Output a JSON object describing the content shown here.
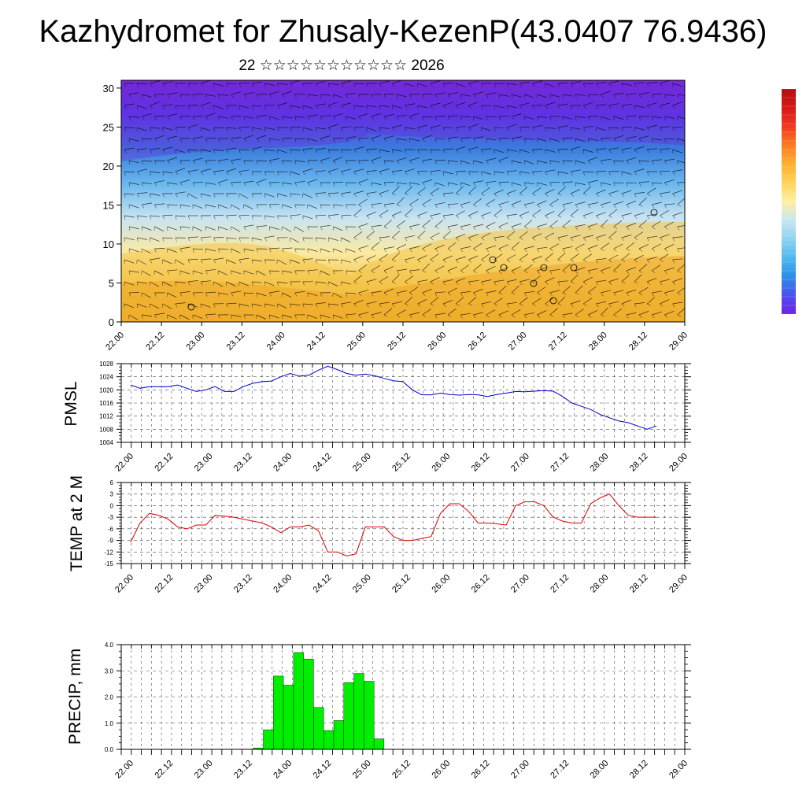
{
  "title": "Kazhydromet for Zhusaly-KezenP(43.0407 76.9436)",
  "subtitle": "22 ☆☆☆☆☆☆☆☆☆☆☆ 2026",
  "colors": {
    "pmsl_line": "#0000cc",
    "temp_line": "#dd0000",
    "precip_fill": "#00ee00",
    "precip_edge": "#000000",
    "gridline": "#000000",
    "section_colors": [
      "#7a2bd6",
      "#5a3ae8",
      "#3b7ddd",
      "#6ab8ee",
      "#c9e4f2",
      "#fbeaa0",
      "#f3c240",
      "#eda81c"
    ],
    "colorbar_colors": [
      "#7020e8",
      "#4a52f0",
      "#2f8ee6",
      "#4fb9f0",
      "#8fd2f0",
      "#c8e6f2",
      "#fff0a0",
      "#ffd25a",
      "#ffb030",
      "#ff7a20",
      "#f03a20",
      "#d81818",
      "#b01010"
    ]
  },
  "chart_data": [
    {
      "type": "heatmap",
      "name": "vertical-section",
      "x_tick_labels": [
        "22.00",
        "22.12",
        "23.00",
        "23.12",
        "24.00",
        "24.12",
        "25.00",
        "25.12",
        "26.00",
        "26.12",
        "27.00",
        "27.12",
        "28.00",
        "28.12",
        "29.00"
      ],
      "y_ticks": [
        0,
        5,
        10,
        15,
        20,
        25,
        30
      ],
      "ylim": [
        0,
        31
      ],
      "grid": false,
      "legend": "right colorbar"
    },
    {
      "type": "line",
      "name": "pmsl",
      "ylabel": "PMSL",
      "x_tick_labels": [
        "22.00",
        "22.12",
        "23.00",
        "23.12",
        "24.00",
        "24.12",
        "25.00",
        "25.12",
        "26.00",
        "26.12",
        "27.00",
        "27.12",
        "28.00",
        "28.12",
        "29.00"
      ],
      "y_ticks": [
        1004,
        1008,
        1012,
        1016,
        1020,
        1024,
        1028
      ],
      "ylim": [
        1004,
        1028
      ],
      "grid": true,
      "values": [
        1021.5,
        1020.5,
        1021,
        1021,
        1021,
        1021.5,
        1020.5,
        1019.5,
        1020,
        1021,
        1019.5,
        1019.5,
        1021,
        1022,
        1022.5,
        1022.7,
        1024,
        1025,
        1024.2,
        1024.5,
        1026,
        1027.2,
        1026.2,
        1025,
        1024.5,
        1024.8,
        1024.3,
        1023.5,
        1022.8,
        1022.5,
        1020,
        1018.5,
        1018.5,
        1019,
        1018.6,
        1018.4,
        1018.6,
        1018.5,
        1018,
        1018.6,
        1019,
        1019.5,
        1019.4,
        1019.6,
        1019.8,
        1019.6,
        1018,
        1016,
        1015,
        1014,
        1012.5,
        1011.5,
        1010.5,
        1010,
        1009,
        1008,
        1009
      ]
    },
    {
      "type": "line",
      "name": "temp",
      "ylabel": "TEMP at 2 M",
      "x_tick_labels": [
        "22.00",
        "22.12",
        "23.00",
        "23.12",
        "24.00",
        "24.12",
        "25.00",
        "25.12",
        "26.00",
        "26.12",
        "27.00",
        "27.12",
        "28.00",
        "28.12",
        "29.00"
      ],
      "y_ticks": [
        -15,
        -12,
        -9,
        -6,
        -3,
        0,
        3,
        6
      ],
      "ylim": [
        -15,
        6
      ],
      "grid": true,
      "values": [
        -9.5,
        -4.5,
        -2,
        -2.5,
        -3.5,
        -5.5,
        -6,
        -5,
        -5,
        -2.5,
        -2.7,
        -3,
        -3.5,
        -4,
        -4.5,
        -5.5,
        -7,
        -5.5,
        -5.5,
        -5,
        -6.5,
        -12,
        -12,
        -13,
        -12.5,
        -5.5,
        -5.5,
        -5.5,
        -8,
        -9,
        -9,
        -8.5,
        -8,
        -2,
        0.5,
        0.5,
        -1.5,
        -4.5,
        -4.5,
        -4.7,
        -5,
        0,
        1,
        1,
        0,
        -3,
        -4,
        -4.5,
        -4.5,
        0.5,
        2,
        3,
        0,
        -2.5,
        -3,
        -3,
        -3
      ]
    },
    {
      "type": "bar",
      "name": "precip",
      "ylabel": "PRECIP, mm",
      "x_tick_labels": [
        "22.00",
        "22.12",
        "23.00",
        "23.12",
        "24.00",
        "24.12",
        "25.00",
        "25.12",
        "26.00",
        "26.12",
        "27.00",
        "27.12",
        "28.00",
        "28.12",
        "29.00"
      ],
      "y_tick_labels": [
        "0.0",
        "1.0",
        "2.0",
        "3.0",
        "4.0"
      ],
      "ylim": [
        0,
        4
      ],
      "grid": true,
      "values": [
        0,
        0,
        0,
        0,
        0,
        0,
        0,
        0,
        0,
        0,
        0,
        0,
        0,
        0.05,
        0.75,
        2.8,
        2.45,
        3.7,
        3.45,
        1.6,
        0.72,
        1.1,
        2.55,
        2.9,
        2.6,
        0.4,
        0,
        0,
        0,
        0,
        0,
        0,
        0,
        0,
        0,
        0,
        0,
        0,
        0,
        0,
        0,
        0,
        0,
        0,
        0,
        0,
        0,
        0,
        0,
        0,
        0,
        0,
        0,
        0,
        0,
        0,
        0
      ]
    }
  ]
}
